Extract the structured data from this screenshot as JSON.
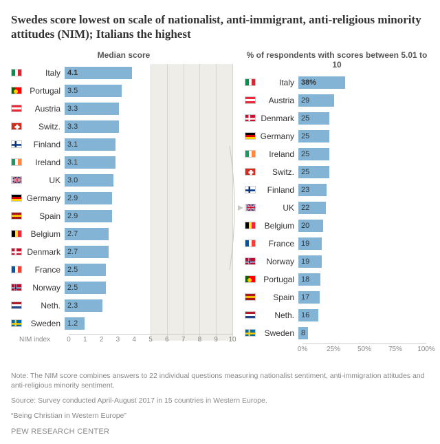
{
  "title": "Swedes score lowest on scale of nationalist, anti-immigrant, anti-religious minority attitudes (NIM); Italians the highest",
  "left_chart": {
    "type": "bar",
    "title": "Median score",
    "axis_label": "NIM index",
    "xmin": 0,
    "xmax": 10,
    "ticks": [
      0,
      1,
      2,
      3,
      4,
      5,
      6,
      7,
      8,
      9,
      10
    ],
    "shade_from": 5,
    "shade_to": 10,
    "bar_color": "#83b4d6",
    "rows": [
      {
        "country": "Italy",
        "value": 4.1,
        "bold": true,
        "flag": {
          "dir": "v",
          "c": [
            "#009246",
            "#ffffff",
            "#ce2b37"
          ]
        }
      },
      {
        "country": "Portugal",
        "value": 3.5,
        "flag": {
          "dir": "v",
          "c": [
            "#006600",
            "#ff0000",
            "#ff0000"
          ],
          "dot": "#ffcc00"
        }
      },
      {
        "country": "Austria",
        "value": 3.3,
        "flag": {
          "dir": "h",
          "c": [
            "#ed2939",
            "#ffffff",
            "#ed2939"
          ]
        }
      },
      {
        "country": "Switz.",
        "value": 3.3,
        "flag": {
          "solid": "#d52b1e",
          "cross": "#ffffff"
        }
      },
      {
        "country": "Finland",
        "value": 3.1,
        "flag": {
          "nordic": true,
          "bg": "#ffffff",
          "cross": "#003580"
        }
      },
      {
        "country": "Ireland",
        "value": 3.1,
        "flag": {
          "dir": "v",
          "c": [
            "#169b62",
            "#ffffff",
            "#ff883e"
          ]
        }
      },
      {
        "country": "UK",
        "value": 3.0,
        "flag": {
          "uk": true
        }
      },
      {
        "country": "Germany",
        "value": 2.9,
        "flag": {
          "dir": "h",
          "c": [
            "#000000",
            "#dd0000",
            "#ffce00"
          ]
        }
      },
      {
        "country": "Spain",
        "value": 2.9,
        "flag": {
          "dir": "h",
          "c": [
            "#aa151b",
            "#f1bf00",
            "#aa151b"
          ]
        }
      },
      {
        "country": "Belgium",
        "value": 2.7,
        "flag": {
          "dir": "v",
          "c": [
            "#000000",
            "#fae042",
            "#ed2939"
          ]
        }
      },
      {
        "country": "Denmark",
        "value": 2.7,
        "flag": {
          "nordic": true,
          "bg": "#c8102e",
          "cross": "#ffffff"
        }
      },
      {
        "country": "France",
        "value": 2.5,
        "flag": {
          "dir": "v",
          "c": [
            "#0055a4",
            "#ffffff",
            "#ef4135"
          ]
        }
      },
      {
        "country": "Norway",
        "value": 2.5,
        "flag": {
          "nordic": true,
          "bg": "#ba0c2f",
          "cross": "#ffffff",
          "cross2": "#00205b"
        }
      },
      {
        "country": "Neth.",
        "value": 2.3,
        "flag": {
          "dir": "h",
          "c": [
            "#ae1c28",
            "#ffffff",
            "#21468b"
          ]
        }
      },
      {
        "country": "Sweden",
        "value": 1.2,
        "flag": {
          "nordic": true,
          "bg": "#006aa7",
          "cross": "#fecc00"
        }
      }
    ]
  },
  "right_chart": {
    "type": "bar",
    "title": "% of respondents with scores between 5.01 to 10",
    "xmin": 0,
    "xmax": 100,
    "ticks": [
      0,
      25,
      50,
      75,
      100
    ],
    "bar_color": "#83b4d6",
    "rows": [
      {
        "country": "Italy",
        "value": 38,
        "suffix": "%",
        "bold": true,
        "flag": {
          "dir": "v",
          "c": [
            "#009246",
            "#ffffff",
            "#ce2b37"
          ]
        }
      },
      {
        "country": "Austria",
        "value": 29,
        "flag": {
          "dir": "h",
          "c": [
            "#ed2939",
            "#ffffff",
            "#ed2939"
          ]
        }
      },
      {
        "country": "Denmark",
        "value": 25,
        "flag": {
          "nordic": true,
          "bg": "#c8102e",
          "cross": "#ffffff"
        }
      },
      {
        "country": "Germany",
        "value": 25,
        "flag": {
          "dir": "h",
          "c": [
            "#000000",
            "#dd0000",
            "#ffce00"
          ]
        }
      },
      {
        "country": "Ireland",
        "value": 25,
        "flag": {
          "dir": "v",
          "c": [
            "#169b62",
            "#ffffff",
            "#ff883e"
          ]
        }
      },
      {
        "country": "Switz.",
        "value": 25,
        "flag": {
          "solid": "#d52b1e",
          "cross": "#ffffff"
        }
      },
      {
        "country": "Finland",
        "value": 23,
        "flag": {
          "nordic": true,
          "bg": "#ffffff",
          "cross": "#003580"
        }
      },
      {
        "country": "UK",
        "value": 22,
        "flag": {
          "uk": true
        }
      },
      {
        "country": "Belgium",
        "value": 20,
        "flag": {
          "dir": "v",
          "c": [
            "#000000",
            "#fae042",
            "#ed2939"
          ]
        }
      },
      {
        "country": "France",
        "value": 19,
        "flag": {
          "dir": "v",
          "c": [
            "#0055a4",
            "#ffffff",
            "#ef4135"
          ]
        }
      },
      {
        "country": "Norway",
        "value": 19,
        "flag": {
          "nordic": true,
          "bg": "#ba0c2f",
          "cross": "#ffffff",
          "cross2": "#00205b"
        }
      },
      {
        "country": "Portugal",
        "value": 18,
        "flag": {
          "dir": "v",
          "c": [
            "#006600",
            "#ff0000",
            "#ff0000"
          ],
          "dot": "#ffcc00"
        }
      },
      {
        "country": "Spain",
        "value": 17,
        "flag": {
          "dir": "h",
          "c": [
            "#aa151b",
            "#f1bf00",
            "#aa151b"
          ]
        }
      },
      {
        "country": "Neth.",
        "value": 16,
        "flag": {
          "dir": "h",
          "c": [
            "#ae1c28",
            "#ffffff",
            "#21468b"
          ]
        }
      },
      {
        "country": "Sweden",
        "value": 8,
        "flag": {
          "nordic": true,
          "bg": "#006aa7",
          "cross": "#fecc00"
        }
      }
    ]
  },
  "note": "Note: The NIM score combines answers to 22 individual questions measuring nationalist sentiment, anti-immigration attitudes and anti-religious minority sentiment.",
  "source": "Source: Survey conducted April-August 2017 in 15 countries in Western Europe.",
  "study": "“Being Christian in Western Europe”",
  "footer": "PEW RESEARCH CENTER"
}
